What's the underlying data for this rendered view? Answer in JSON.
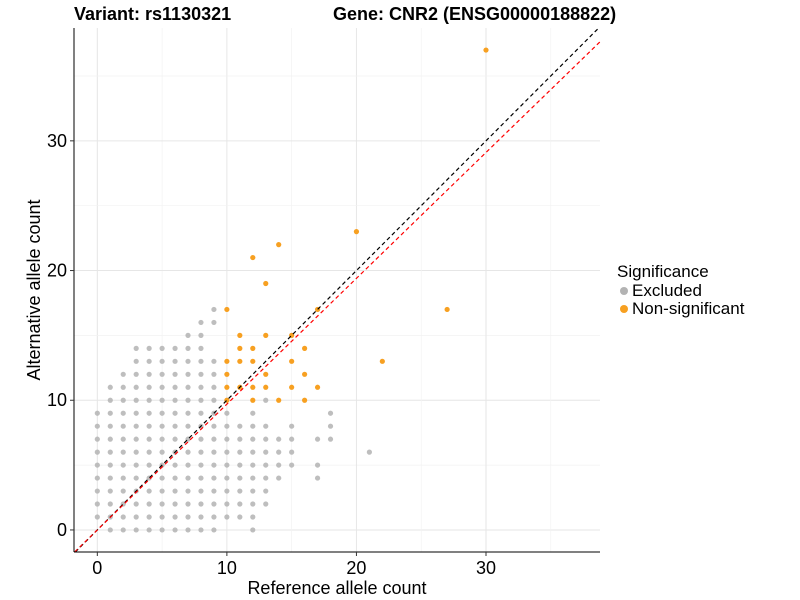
{
  "title": {
    "variant": "Variant: rs1130321",
    "gene": "Gene: CNR2 (ENSG00000188822)"
  },
  "legend": {
    "title": "Significance",
    "items": [
      {
        "label": "Excluded",
        "color": "#b3b3b3"
      },
      {
        "label": "Non-significant",
        "color": "#f7a021"
      }
    ]
  },
  "chart_data": {
    "type": "scatter",
    "xlabel": "Reference allele count",
    "ylabel": "Alternative allele count",
    "xlim": [
      -1.8,
      38.8
    ],
    "ylim": [
      -1.7,
      38.7
    ],
    "xticks": [
      0,
      10,
      20,
      30
    ],
    "yticks": [
      0,
      10,
      20,
      30
    ],
    "grid": true,
    "legend_position": "right",
    "reference_lines": [
      {
        "name": "identity",
        "slope": 1,
        "intercept": 0,
        "color": "#000000",
        "style": "dashed"
      },
      {
        "name": "fit",
        "slope": 0.97,
        "intercept": 0,
        "color": "#ff0000",
        "style": "dashed"
      }
    ],
    "series": [
      {
        "name": "Excluded",
        "color": "#b3b3b3",
        "rows": [
          {
            "y": 0,
            "x": [
              1,
              2,
              3,
              4,
              5,
              6,
              7,
              8,
              9,
              12
            ]
          },
          {
            "y": 1,
            "x": [
              0,
              1,
              2,
              3,
              4,
              5,
              6,
              7,
              8,
              9,
              10,
              11,
              12
            ]
          },
          {
            "y": 2,
            "x": [
              0,
              1,
              2,
              3,
              4,
              5,
              6,
              7,
              8,
              9,
              10,
              11,
              12,
              13
            ]
          },
          {
            "y": 3,
            "x": [
              0,
              1,
              2,
              3,
              4,
              5,
              6,
              7,
              8,
              9,
              10,
              11,
              12,
              13
            ]
          },
          {
            "y": 4,
            "x": [
              0,
              1,
              2,
              3,
              4,
              5,
              6,
              7,
              8,
              9,
              10,
              11,
              12,
              13,
              14,
              17
            ]
          },
          {
            "y": 5,
            "x": [
              0,
              1,
              2,
              3,
              4,
              5,
              6,
              7,
              8,
              9,
              10,
              11,
              12,
              13,
              14,
              15,
              17
            ]
          },
          {
            "y": 6,
            "x": [
              0,
              1,
              2,
              3,
              4,
              5,
              6,
              7,
              8,
              9,
              10,
              11,
              12,
              13,
              14,
              15,
              21
            ]
          },
          {
            "y": 7,
            "x": [
              0,
              1,
              2,
              3,
              4,
              5,
              6,
              7,
              8,
              9,
              10,
              11,
              12,
              13,
              14,
              15,
              17,
              18
            ]
          },
          {
            "y": 8,
            "x": [
              0,
              1,
              2,
              3,
              4,
              5,
              6,
              7,
              8,
              9,
              10,
              11,
              12,
              13,
              15,
              18
            ]
          },
          {
            "y": 9,
            "x": [
              0,
              1,
              2,
              3,
              4,
              5,
              6,
              7,
              8,
              9,
              10,
              12,
              18
            ]
          },
          {
            "y": 10,
            "x": [
              1,
              2,
              3,
              4,
              5,
              6,
              7,
              8,
              9,
              13
            ]
          },
          {
            "y": 11,
            "x": [
              1,
              2,
              3,
              4,
              5,
              6,
              7,
              8,
              9
            ]
          },
          {
            "y": 12,
            "x": [
              2,
              3,
              4,
              5,
              6,
              7,
              8,
              9
            ]
          },
          {
            "y": 13,
            "x": [
              3,
              4,
              5,
              6,
              7,
              8,
              9
            ]
          },
          {
            "y": 14,
            "x": [
              3,
              4,
              5,
              6,
              7,
              8
            ]
          },
          {
            "y": 15,
            "x": [
              7,
              8
            ]
          },
          {
            "y": 16,
            "x": [
              8,
              9
            ]
          },
          {
            "y": 17,
            "x": [
              9
            ]
          }
        ]
      },
      {
        "name": "Non-significant",
        "color": "#f7a021",
        "points": [
          [
            30,
            37
          ],
          [
            20,
            23
          ],
          [
            14,
            22
          ],
          [
            12,
            21
          ],
          [
            13,
            19
          ],
          [
            10,
            17
          ],
          [
            27,
            17
          ],
          [
            17,
            17
          ],
          [
            11,
            15
          ],
          [
            13,
            15
          ],
          [
            15,
            15
          ],
          [
            11,
            14
          ],
          [
            12,
            14
          ],
          [
            16,
            14
          ],
          [
            10,
            13
          ],
          [
            11,
            13
          ],
          [
            12,
            13
          ],
          [
            15,
            13
          ],
          [
            22,
            13
          ],
          [
            10,
            12
          ],
          [
            13,
            12
          ],
          [
            16,
            12
          ],
          [
            10,
            11
          ],
          [
            11,
            11
          ],
          [
            12,
            11
          ],
          [
            13,
            11
          ],
          [
            15,
            11
          ],
          [
            17,
            11
          ],
          [
            10,
            10
          ],
          [
            12,
            10
          ],
          [
            14,
            10
          ],
          [
            16,
            10
          ]
        ]
      }
    ]
  }
}
